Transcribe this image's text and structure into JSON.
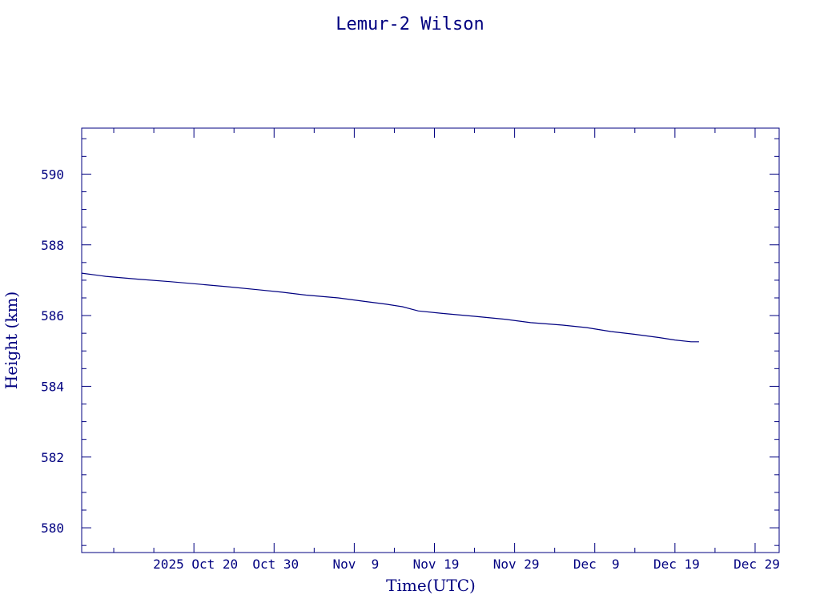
{
  "colors": {
    "axis": "#000080",
    "line": "#000080",
    "background": "#ffffff"
  },
  "chart_data": {
    "type": "line",
    "title": "Lemur-2 Wilson",
    "xlabel": "Time(UTC)",
    "ylabel": "Height (km)",
    "grid": false,
    "x_axis": {
      "min": "2025-10-06",
      "max": "2026-01-01",
      "tick_labels": [
        {
          "date": "2025-10-20",
          "label": "2025 Oct 20"
        },
        {
          "date": "2025-10-30",
          "label": "Oct 30"
        },
        {
          "date": "2025-11-09",
          "label": "Nov  9"
        },
        {
          "date": "2025-11-19",
          "label": "Nov 19"
        },
        {
          "date": "2025-11-29",
          "label": "Nov 29"
        },
        {
          "date": "2025-12-09",
          "label": "Dec  9"
        },
        {
          "date": "2025-12-19",
          "label": "Dec 19"
        },
        {
          "date": "2025-12-29",
          "label": "Dec 29"
        }
      ]
    },
    "y_axis": {
      "min": 579.3,
      "max": 591.3,
      "ticks": [
        580,
        582,
        584,
        586,
        588,
        590
      ],
      "tick_labels": [
        "580",
        "582",
        "584",
        "586",
        "588",
        "590"
      ]
    },
    "series": [
      {
        "points": [
          {
            "x": "2025-10-06",
            "y": 587.2
          },
          {
            "x": "2025-10-09",
            "y": 587.11
          },
          {
            "x": "2025-10-13",
            "y": 587.03
          },
          {
            "x": "2025-10-17",
            "y": 586.96
          },
          {
            "x": "2025-10-20",
            "y": 586.9
          },
          {
            "x": "2025-10-24",
            "y": 586.82
          },
          {
            "x": "2025-10-28",
            "y": 586.73
          },
          {
            "x": "2025-10-31",
            "y": 586.66
          },
          {
            "x": "2025-11-03",
            "y": 586.58
          },
          {
            "x": "2025-11-07",
            "y": 586.5
          },
          {
            "x": "2025-11-10",
            "y": 586.41
          },
          {
            "x": "2025-11-13",
            "y": 586.32
          },
          {
            "x": "2025-11-15",
            "y": 586.25
          },
          {
            "x": "2025-11-17",
            "y": 586.13
          },
          {
            "x": "2025-11-20",
            "y": 586.06
          },
          {
            "x": "2025-11-24",
            "y": 585.98
          },
          {
            "x": "2025-11-28",
            "y": 585.89
          },
          {
            "x": "2025-12-01",
            "y": 585.8
          },
          {
            "x": "2025-12-05",
            "y": 585.73
          },
          {
            "x": "2025-12-08",
            "y": 585.66
          },
          {
            "x": "2025-12-11",
            "y": 585.55
          },
          {
            "x": "2025-12-14",
            "y": 585.47
          },
          {
            "x": "2025-12-17",
            "y": 585.38
          },
          {
            "x": "2025-12-19",
            "y": 585.31
          },
          {
            "x": "2025-12-21",
            "y": 585.26
          },
          {
            "x": "2025-12-22",
            "y": 585.26
          }
        ]
      }
    ]
  }
}
